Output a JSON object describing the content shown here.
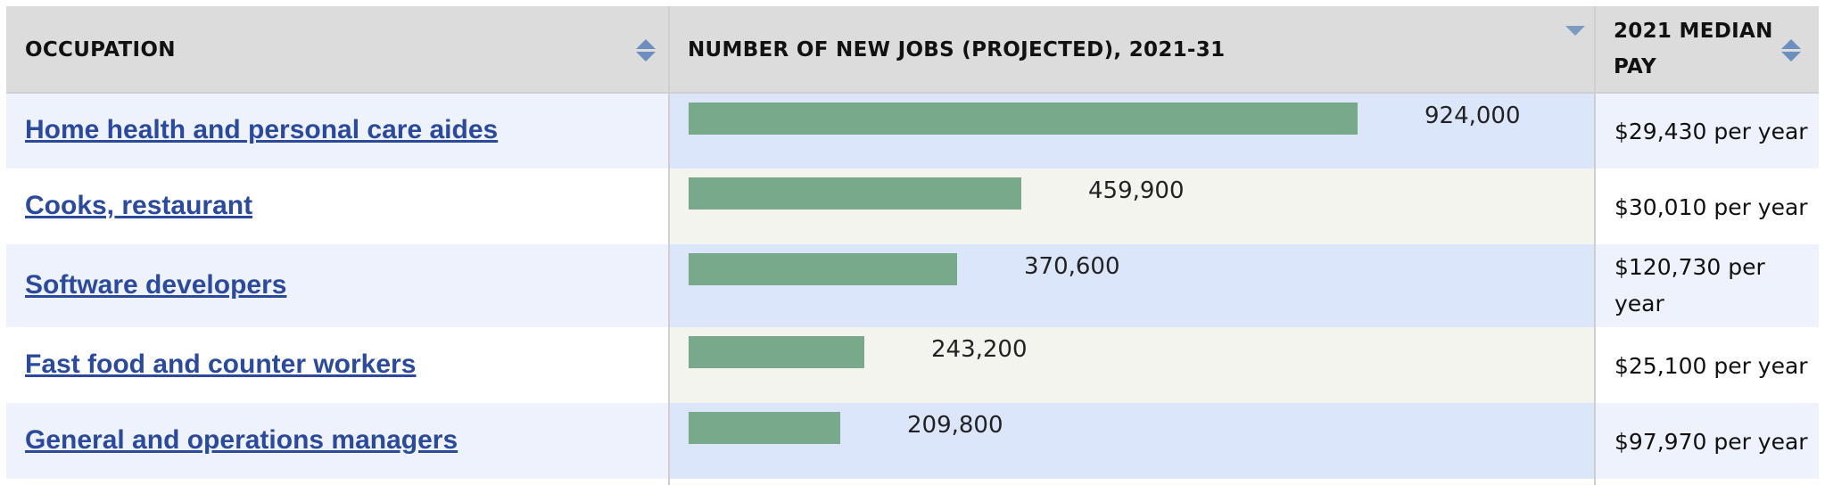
{
  "table": {
    "headers": {
      "occupation": "OCCUPATION",
      "jobs": "NUMBER OF NEW JOBS (PROJECTED), 2021-31",
      "pay": "2021 MEDIAN PAY"
    },
    "colors": {
      "header_bg": "#dcdcdc",
      "row_alt_bg": "#edf2fd",
      "row_bg": "#ffffff",
      "bar_cell_alt_bg": "#dce6fb",
      "bar_cell_bg": "#f3f4ee",
      "bar": "#78a98a",
      "link": "#2b4a9c",
      "sort_icon": "#6c8fbf"
    },
    "rows": [
      {
        "occupation": "Home health and personal care aides",
        "jobs_label": "924,000",
        "pay": "$29,430 per year"
      },
      {
        "occupation": "Cooks, restaurant",
        "jobs_label": "459,900",
        "pay": "$30,010 per year"
      },
      {
        "occupation": "Software developers",
        "jobs_label": "370,600",
        "pay": "$120,730 per year"
      },
      {
        "occupation": "Fast food and counter workers",
        "jobs_label": "243,200",
        "pay": "$25,100 per year"
      },
      {
        "occupation": "General and operations managers",
        "jobs_label": "209,800",
        "pay": "$97,970 per year"
      }
    ]
  },
  "chart_data": {
    "type": "bar",
    "orientation": "horizontal",
    "categories": [
      "Home health and personal care aides",
      "Cooks, restaurant",
      "Software developers",
      "Fast food and counter workers",
      "General and operations managers"
    ],
    "values": [
      924000,
      459900,
      370600,
      243200,
      209800
    ],
    "title": "NUMBER OF NEW JOBS (PROJECTED), 2021-31",
    "xlabel": "",
    "ylabel": "",
    "xlim": [
      0,
      924000
    ],
    "grid": false,
    "legend": "none",
    "data_labels": [
      "924,000",
      "459,900",
      "370,600",
      "243,200",
      "209,800"
    ]
  }
}
